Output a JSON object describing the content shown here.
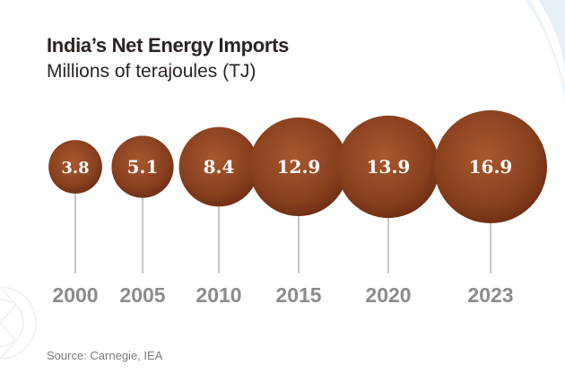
{
  "chart_data": {
    "type": "bubble",
    "title": "India’s Net Energy Imports",
    "subtitle": "Millions of terajoules (TJ)",
    "categories": [
      "2000",
      "2005",
      "2010",
      "2015",
      "2020",
      "2023"
    ],
    "values": [
      3.8,
      5.1,
      8.4,
      12.9,
      13.9,
      16.9
    ],
    "value_labels": [
      "3.8",
      "5.1",
      "8.4",
      "12.9",
      "13.9",
      "16.9"
    ],
    "unit": "Millions of terajoules (TJ)",
    "source": "Source: Carnegie, IEA"
  },
  "colors": {
    "bubble_light": "#a8582f",
    "bubble_dark": "#6a2a12",
    "year_label": "#8c8c8c",
    "title": "#2b2320"
  }
}
